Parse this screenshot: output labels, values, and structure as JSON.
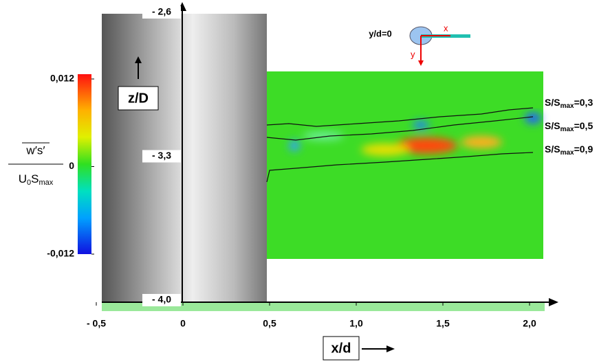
{
  "chart_data": {
    "type": "contour",
    "xlabel": "x/d",
    "zlabel": "z/D",
    "xlim": [
      -0.5,
      2.0
    ],
    "xticks": [
      {
        "value": -0.5,
        "label": "- 0,5"
      },
      0,
      {
        "value": 0.5,
        "label": "0,5"
      },
      {
        "value": 1.0,
        "label": "1,0"
      },
      {
        "value": 1.5,
        "label": "1,5"
      },
      {
        "value": 2.0,
        "label": "2,0"
      }
    ],
    "zlim": [
      -2.6,
      -4.0
    ],
    "zticks": [
      {
        "value": -2.6,
        "label": "- 2,6"
      },
      {
        "value": -3.3,
        "label": "- 3,3"
      },
      {
        "value": -4.0,
        "label": "- 4,0"
      }
    ],
    "colorbar": {
      "lim": [
        -0.012,
        0.012
      ],
      "ticks": [
        {
          "value": 0.012,
          "label": "0,012"
        },
        0,
        {
          "value": -0.012,
          "label": "-0,012"
        }
      ],
      "label": {
        "numerator": "w′s′",
        "denominator": [
          "U",
          "0",
          "S",
          "max"
        ]
      }
    },
    "contour_labels": [
      {
        "base": "S/S",
        "sub": "max",
        "rest": "=0,3"
      },
      {
        "base": "S/S",
        "sub": "max",
        "rest": "=0,5"
      },
      {
        "base": "S/S",
        "sub": "max",
        "rest": "=0,9"
      }
    ],
    "inset": {
      "title": "y/d=0",
      "x": "x",
      "y": "y"
    }
  }
}
